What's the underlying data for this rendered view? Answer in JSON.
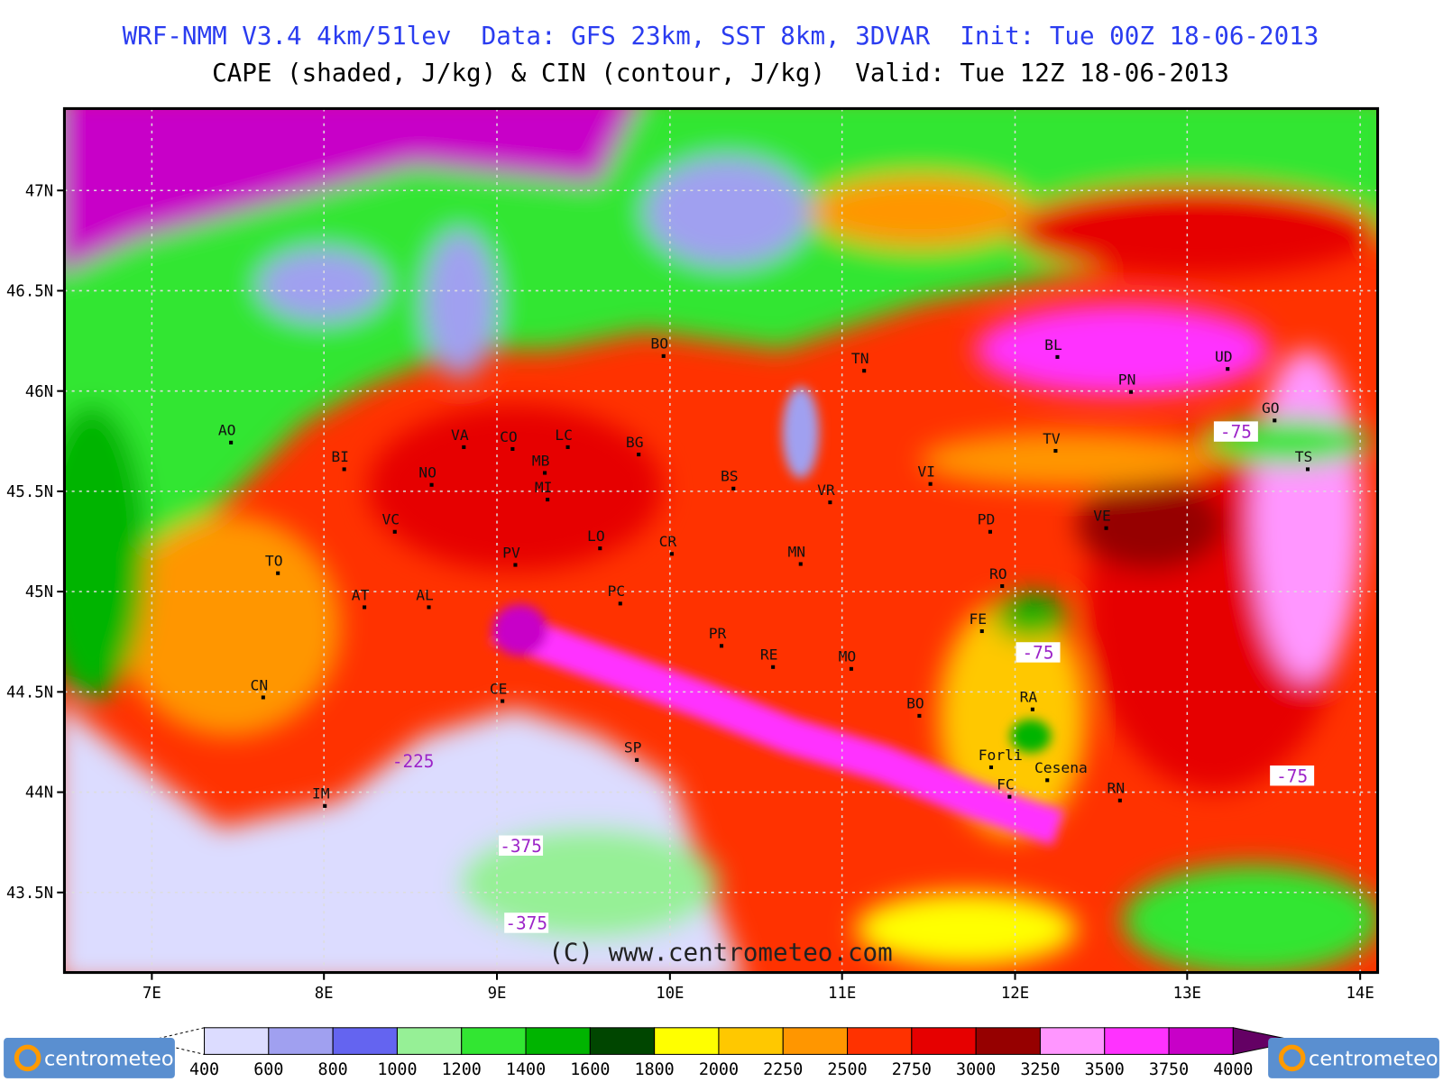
{
  "header": {
    "line1": "WRF-NMM V3.4 4km/51lev  Data: GFS 23km, SST 8km, 3DVAR  Init: Tue 00Z 18-06-2013",
    "line2": "CAPE (shaded, J/kg) & CIN (contour, J/kg)  Valid: Tue 12Z 18-06-2013"
  },
  "map": {
    "lat_ticks": [
      "47N",
      "46.5N",
      "46N",
      "45.5N",
      "45N",
      "44.5N",
      "44N",
      "43.5N"
    ],
    "lon_ticks": [
      "7E",
      "8E",
      "9E",
      "10E",
      "11E",
      "12E",
      "13E",
      "14E"
    ],
    "cities": [
      "BL",
      "UD",
      "PN",
      "TN",
      "BO",
      "CO",
      "VA",
      "LC",
      "MB",
      "BG",
      "BS",
      "VR",
      "VI",
      "TV",
      "PD",
      "VE",
      "MI",
      "NO",
      "BI",
      "AO",
      "VC",
      "TO",
      "AT",
      "AL",
      "PV",
      "LO",
      "CR",
      "PC",
      "MN",
      "RO",
      "FE",
      "PR",
      "RE",
      "MO",
      "BO",
      "RA",
      "Forli",
      "Cesena",
      "FC",
      "RN",
      "CN",
      "CE",
      "IM",
      "SP",
      "GO",
      "TS"
    ],
    "contour_labels": [
      "-75",
      "-75",
      "-75",
      "-375",
      "-375",
      "-225"
    ],
    "copyright": "(C) www.centrometeo.com"
  },
  "colorbar": {
    "labels": [
      "400",
      "600",
      "800",
      "1000",
      "1200",
      "1400",
      "1600",
      "1800",
      "2000",
      "2250",
      "2500",
      "2750",
      "3000",
      "3250",
      "3500",
      "3750",
      "4000"
    ],
    "colors": [
      "#dcdcff",
      "#a0a0f0",
      "#6464f0",
      "#96f096",
      "#32e632",
      "#00b400",
      "#004600",
      "#ffff00",
      "#ffc800",
      "#ff9600",
      "#ff3200",
      "#e60000",
      "#960000",
      "#ff96ff",
      "#ff32ff",
      "#c800c8"
    ],
    "over_color": "#640064",
    "logo": "centrometeo"
  }
}
